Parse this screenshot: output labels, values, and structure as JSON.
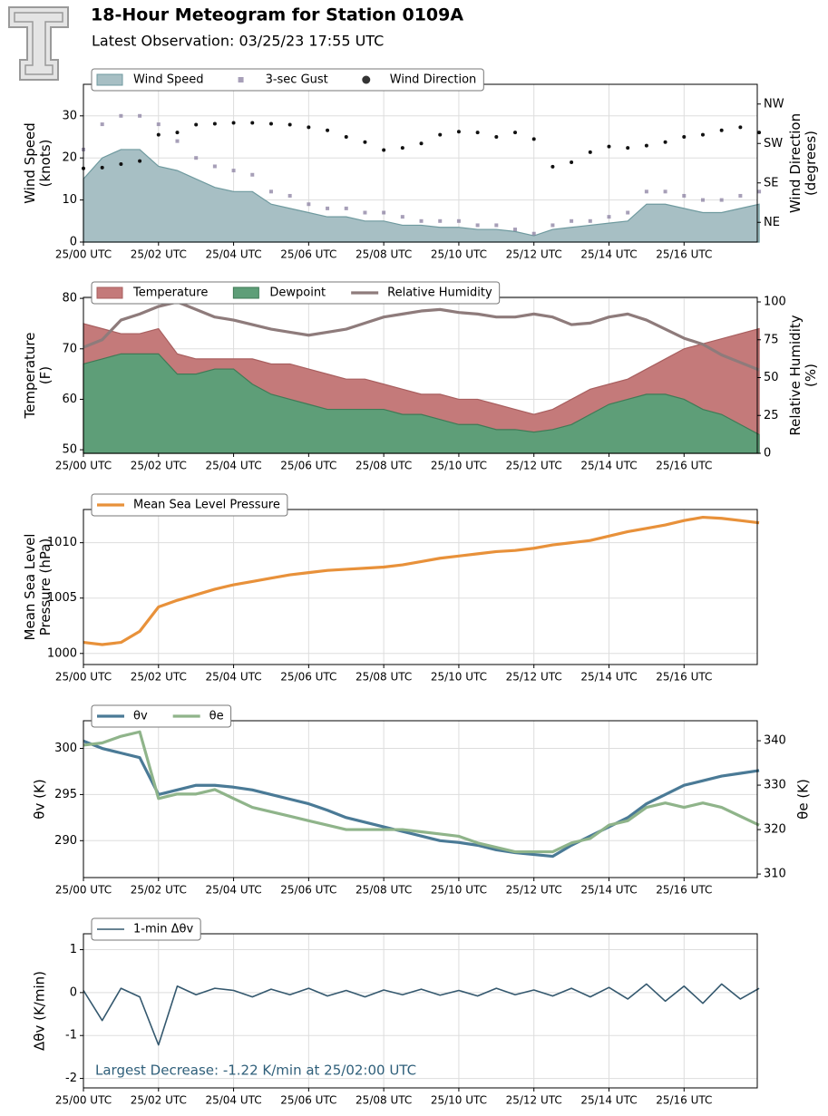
{
  "header": {
    "title": "18-Hour Meteogram for Station 0109A",
    "subtitle": "Latest Observation: 03/25/23 17:55 UTC"
  },
  "chart_data": [
    {
      "type": "area",
      "ylabel": [
        "Wind Speed",
        "(knots)"
      ],
      "y2label": [
        "Wind Direction",
        "(degrees)"
      ],
      "x": [
        0,
        0.5,
        1,
        1.5,
        2,
        2.5,
        3,
        3.5,
        4,
        4.5,
        5,
        5.5,
        6,
        6.5,
        7,
        7.5,
        8,
        8.5,
        9,
        9.5,
        10,
        10.5,
        11,
        11.5,
        12,
        12.5,
        13,
        13.5,
        14,
        14.5,
        15,
        15.5,
        16,
        16.5,
        17,
        17.5,
        18
      ],
      "xlim": [
        0,
        17.95
      ],
      "xticks": [
        {
          "value": 0,
          "label": "25/00 UTC"
        },
        {
          "value": 2,
          "label": "25/02 UTC"
        },
        {
          "value": 4,
          "label": "25/04 UTC"
        },
        {
          "value": 6,
          "label": "25/06 UTC"
        },
        {
          "value": 8,
          "label": "25/08 UTC"
        },
        {
          "value": 10,
          "label": "25/10 UTC"
        },
        {
          "value": 12,
          "label": "25/12 UTC"
        },
        {
          "value": 14,
          "label": "25/14 UTC"
        },
        {
          "value": 16,
          "label": "25/16 UTC"
        }
      ],
      "ylim": [
        0,
        37.5
      ],
      "yticks": [
        0,
        10,
        20,
        30
      ],
      "y2lim": [
        0,
        360
      ],
      "y2ticks": [
        {
          "value": 45,
          "label": "NE"
        },
        {
          "value": 135,
          "label": "SE"
        },
        {
          "value": 225,
          "label": "SW"
        },
        {
          "value": 315,
          "label": "NW"
        }
      ],
      "grid": true,
      "series": [
        {
          "name": "Wind Speed",
          "style": "area",
          "color": "#a7bfc4",
          "edge": "#6f9a9f",
          "values": [
            15,
            20,
            22,
            22,
            18,
            17,
            15,
            13,
            12,
            12,
            9,
            8,
            7,
            6,
            6,
            5,
            5,
            4,
            4,
            3.5,
            3.5,
            3,
            3,
            2.5,
            1.5,
            3,
            3.5,
            4,
            4.5,
            5,
            9,
            9,
            8,
            7,
            7,
            8,
            9
          ]
        },
        {
          "name": "3-sec Gust",
          "style": "scatter",
          "marker": "square",
          "color": "#8a7fa0",
          "values": [
            22,
            28,
            30,
            30,
            28,
            24,
            20,
            18,
            17,
            16,
            12,
            11,
            9,
            8,
            8,
            7,
            7,
            6,
            5,
            5,
            5,
            4,
            4,
            3,
            2,
            4,
            5,
            5,
            6,
            7,
            12,
            12,
            11,
            10,
            10,
            11,
            12
          ]
        },
        {
          "name": "Wind Direction",
          "style": "scatter",
          "marker": "circle",
          "color": "#111111",
          "axis": "y2",
          "values": [
            168,
            170,
            178,
            185,
            245,
            250,
            268,
            270,
            272,
            272,
            270,
            268,
            262,
            255,
            240,
            228,
            210,
            215,
            225,
            245,
            252,
            250,
            240,
            250,
            235,
            172,
            182,
            205,
            218,
            215,
            220,
            228,
            240,
            245,
            255,
            262,
            250
          ]
        }
      ]
    },
    {
      "type": "area",
      "ylabel": [
        "Temperature",
        "(F)"
      ],
      "y2label": [
        "Relative Humidity",
        "(%)"
      ],
      "x": [
        0,
        0.5,
        1,
        1.5,
        2,
        2.5,
        3,
        3.5,
        4,
        4.5,
        5,
        5.5,
        6,
        6.5,
        7,
        7.5,
        8,
        8.5,
        9,
        9.5,
        10,
        10.5,
        11,
        11.5,
        12,
        12.5,
        13,
        13.5,
        14,
        14.5,
        15,
        15.5,
        16,
        16.5,
        17,
        17.5,
        18
      ],
      "xlim": [
        0,
        17.95
      ],
      "xticks": [
        {
          "value": 0,
          "label": "25/00 UTC"
        },
        {
          "value": 2,
          "label": "25/02 UTC"
        },
        {
          "value": 4,
          "label": "25/04 UTC"
        },
        {
          "value": 6,
          "label": "25/06 UTC"
        },
        {
          "value": 8,
          "label": "25/08 UTC"
        },
        {
          "value": 10,
          "label": "25/10 UTC"
        },
        {
          "value": 12,
          "label": "25/12 UTC"
        },
        {
          "value": 14,
          "label": "25/14 UTC"
        },
        {
          "value": 16,
          "label": "25/16 UTC"
        }
      ],
      "ylim": [
        49.3,
        80.2
      ],
      "yticks": [
        50,
        60,
        70,
        80
      ],
      "y2lim": [
        0,
        103
      ],
      "y2ticks": [
        0,
        25,
        50,
        75,
        100
      ],
      "grid": true,
      "series": [
        {
          "name": "Temperature",
          "style": "area",
          "color": "#c47a7a",
          "edge": "#a85f5f",
          "values": [
            75,
            74,
            73,
            73,
            74,
            69,
            68,
            68,
            68,
            68,
            67,
            67,
            66,
            65,
            64,
            64,
            63,
            62,
            61,
            61,
            60,
            60,
            59,
            58,
            57,
            58,
            60,
            62,
            63,
            64,
            66,
            68,
            70,
            71,
            72,
            73,
            74
          ]
        },
        {
          "name": "Dewpoint",
          "style": "area",
          "color": "#5e9e78",
          "edge": "#3f7a56",
          "values": [
            67,
            68,
            69,
            69,
            69,
            65,
            65,
            66,
            66,
            63,
            61,
            60,
            59,
            58,
            58,
            58,
            58,
            57,
            57,
            56,
            55,
            55,
            54,
            54,
            53.5,
            54,
            55,
            57,
            59,
            60,
            61,
            61,
            60,
            58,
            57,
            55,
            53
          ]
        },
        {
          "name": "Relative Humidity",
          "style": "line",
          "color": "#8e7b7b",
          "axis": "y2",
          "values": [
            70,
            75,
            88,
            92,
            97,
            100,
            95,
            90,
            88,
            85,
            82,
            80,
            78,
            80,
            82,
            86,
            90,
            92,
            94,
            95,
            93,
            92,
            90,
            90,
            92,
            90,
            85,
            86,
            90,
            92,
            88,
            82,
            76,
            72,
            65,
            60,
            55
          ]
        }
      ]
    },
    {
      "type": "line",
      "ylabel": [
        "Mean Sea Level",
        "Pressure (hPa)"
      ],
      "x": [
        0,
        0.5,
        1,
        1.5,
        2,
        2.5,
        3,
        3.5,
        4,
        4.5,
        5,
        5.5,
        6,
        6.5,
        7,
        7.5,
        8,
        8.5,
        9,
        9.5,
        10,
        10.5,
        11,
        11.5,
        12,
        12.5,
        13,
        13.5,
        14,
        14.5,
        15,
        15.5,
        16,
        16.5,
        17,
        17.5,
        18
      ],
      "xlim": [
        0,
        17.95
      ],
      "xticks": [
        {
          "value": 0,
          "label": "25/00 UTC"
        },
        {
          "value": 2,
          "label": "25/02 UTC"
        },
        {
          "value": 4,
          "label": "25/04 UTC"
        },
        {
          "value": 6,
          "label": "25/06 UTC"
        },
        {
          "value": 8,
          "label": "25/08 UTC"
        },
        {
          "value": 10,
          "label": "25/10 UTC"
        },
        {
          "value": 12,
          "label": "25/12 UTC"
        },
        {
          "value": 14,
          "label": "25/14 UTC"
        },
        {
          "value": 16,
          "label": "25/16 UTC"
        }
      ],
      "ylim": [
        999,
        1013
      ],
      "yticks": [
        1000,
        1005,
        1010
      ],
      "grid": true,
      "series": [
        {
          "name": "Mean Sea Level Pressure",
          "style": "line",
          "color": "#e8913a",
          "values": [
            1001,
            1000.8,
            1001,
            1002,
            1004.2,
            1004.8,
            1005.3,
            1005.8,
            1006.2,
            1006.5,
            1006.8,
            1007.1,
            1007.3,
            1007.5,
            1007.6,
            1007.7,
            1007.8,
            1008,
            1008.3,
            1008.6,
            1008.8,
            1009,
            1009.2,
            1009.3,
            1009.5,
            1009.8,
            1010,
            1010.2,
            1010.6,
            1011,
            1011.3,
            1011.6,
            1012,
            1012.3,
            1012.2,
            1012,
            1011.8
          ]
        }
      ]
    },
    {
      "type": "line",
      "ylabel": [
        "θv (K)"
      ],
      "y2label": [
        "θe (K)"
      ],
      "x": [
        0,
        0.5,
        1,
        1.5,
        2,
        2.5,
        3,
        3.5,
        4,
        4.5,
        5,
        5.5,
        6,
        6.5,
        7,
        7.5,
        8,
        8.5,
        9,
        9.5,
        10,
        10.5,
        11,
        11.5,
        12,
        12.5,
        13,
        13.5,
        14,
        14.5,
        15,
        15.5,
        16,
        16.5,
        17,
        17.5,
        18
      ],
      "xlim": [
        0,
        17.95
      ],
      "xticks": [
        {
          "value": 0,
          "label": "25/00 UTC"
        },
        {
          "value": 2,
          "label": "25/02 UTC"
        },
        {
          "value": 4,
          "label": "25/04 UTC"
        },
        {
          "value": 6,
          "label": "25/06 UTC"
        },
        {
          "value": 8,
          "label": "25/08 UTC"
        },
        {
          "value": 10,
          "label": "25/10 UTC"
        },
        {
          "value": 12,
          "label": "25/12 UTC"
        },
        {
          "value": 14,
          "label": "25/14 UTC"
        },
        {
          "value": 16,
          "label": "25/16 UTC"
        }
      ],
      "ylim": [
        286,
        303
      ],
      "yticks": [
        290,
        295,
        300
      ],
      "y2lim": [
        309.2,
        344.5
      ],
      "y2ticks": [
        310,
        320,
        330,
        340
      ],
      "grid": true,
      "series": [
        {
          "name": "θv",
          "style": "line",
          "color": "#4a7a96",
          "values": [
            300.8,
            300,
            299.5,
            299,
            295,
            295.5,
            296,
            296,
            295.8,
            295.5,
            295,
            294.5,
            294,
            293.3,
            292.5,
            292,
            291.5,
            291,
            290.5,
            290,
            289.8,
            289.5,
            289,
            288.7,
            288.5,
            288.3,
            289.5,
            290.5,
            291.5,
            292.5,
            294,
            295,
            296,
            296.5,
            297,
            297.3,
            297.6
          ]
        },
        {
          "name": "θe",
          "style": "line",
          "color": "#8fb48a",
          "axis": "y2",
          "values": [
            339,
            339.5,
            341,
            342,
            327,
            328,
            328,
            329,
            327,
            325,
            324,
            323,
            322,
            321,
            320,
            320,
            320,
            320,
            319.5,
            319,
            318.5,
            317,
            316,
            315,
            315,
            315,
            317,
            318,
            321,
            322,
            325,
            326,
            325,
            326,
            325,
            323,
            321
          ]
        }
      ]
    },
    {
      "type": "line",
      "ylabel": [
        "Δθv (K/min)"
      ],
      "annotation": "Largest Decrease: -1.22 K/min at 25/02:00 UTC",
      "x": [
        0,
        0.5,
        1,
        1.5,
        2,
        2.5,
        3,
        3.5,
        4,
        4.5,
        5,
        5.5,
        6,
        6.5,
        7,
        7.5,
        8,
        8.5,
        9,
        9.5,
        10,
        10.5,
        11,
        11.5,
        12,
        12.5,
        13,
        13.5,
        14,
        14.5,
        15,
        15.5,
        16,
        16.5,
        17,
        17.5,
        18
      ],
      "xlim": [
        0,
        17.95
      ],
      "xticks": [
        {
          "value": 0,
          "label": "25/00 UTC"
        },
        {
          "value": 2,
          "label": "25/02 UTC"
        },
        {
          "value": 4,
          "label": "25/04 UTC"
        },
        {
          "value": 6,
          "label": "25/06 UTC"
        },
        {
          "value": 8,
          "label": "25/08 UTC"
        },
        {
          "value": 10,
          "label": "25/10 UTC"
        },
        {
          "value": 12,
          "label": "25/12 UTC"
        },
        {
          "value": 14,
          "label": "25/14 UTC"
        },
        {
          "value": 16,
          "label": "25/16 UTC"
        }
      ],
      "ylim": [
        -2.22,
        1.37
      ],
      "yticks": [
        -2,
        -1,
        0,
        1
      ],
      "grid": true,
      "series": [
        {
          "name": "1-min Δθv",
          "style": "line",
          "color": "#34586e",
          "width": 1.6,
          "values": [
            0.05,
            -0.65,
            0.1,
            -0.1,
            -1.22,
            0.15,
            -0.05,
            0.1,
            0.05,
            -0.1,
            0.08,
            -0.05,
            0.1,
            -0.08,
            0.05,
            -0.1,
            0.06,
            -0.05,
            0.08,
            -0.06,
            0.05,
            -0.08,
            0.1,
            -0.05,
            0.06,
            -0.08,
            0.1,
            -0.1,
            0.12,
            -0.15,
            0.2,
            -0.2,
            0.15,
            -0.25,
            0.2,
            -0.15,
            0.1
          ]
        }
      ]
    }
  ]
}
